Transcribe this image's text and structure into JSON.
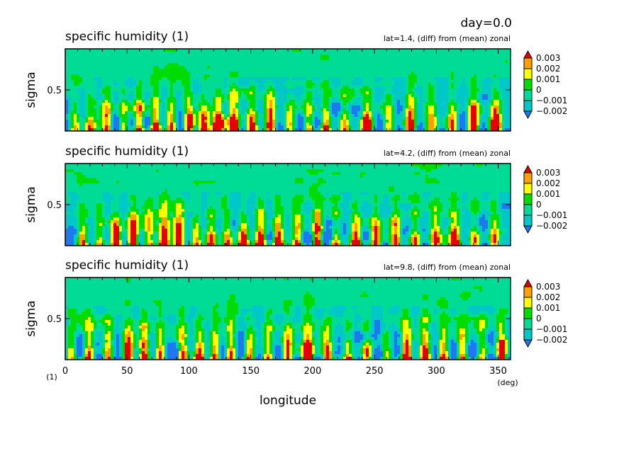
{
  "figure": {
    "day_label": "day=0.0",
    "xlabel": "longitude",
    "ylabel": "sigma",
    "x_unit": "(deg)",
    "y_unit": "(1)"
  },
  "colors": {
    "levels": [
      "#1e78f0",
      "#00c8c8",
      "#00dc96",
      "#00dc00",
      "#ffff00",
      "#ffa000",
      "#e60000"
    ],
    "outline": "#000000"
  },
  "chart_data": [
    {
      "type": "heatmap",
      "title": "specific humidity (1)",
      "subtitle": "lat=1.4, (diff) from (mean) zonal",
      "xlim": [
        0,
        360
      ],
      "x_ticks": [
        0,
        50,
        100,
        150,
        200,
        250,
        300,
        350
      ],
      "y_ticks": [
        0.5
      ],
      "colorbar": {
        "ticks": [
          "0.003",
          "0.002",
          "0.001",
          "0",
          "−0.001",
          "−0.002"
        ]
      },
      "hot_spots": [
        8,
        20,
        34,
        47,
        60,
        73,
        86,
        100,
        112,
        124,
        136,
        151,
        166,
        182,
        197,
        211,
        226,
        244,
        262,
        279,
        296,
        313,
        330,
        348
      ]
    },
    {
      "type": "heatmap",
      "title": "specific humidity (1)",
      "subtitle": "lat=4.2, (diff) from (mean) zonal",
      "xlim": [
        0,
        360
      ],
      "x_ticks": [
        0,
        50,
        100,
        150,
        200,
        250,
        300,
        350
      ],
      "y_ticks": [
        0.5
      ],
      "colorbar": {
        "ticks": [
          "0.003",
          "0.002",
          "0.001",
          "0",
          "−0.001",
          "−0.002"
        ]
      },
      "hot_spots": [
        14,
        28,
        41,
        55,
        68,
        80,
        92,
        106,
        118,
        131,
        144,
        158,
        172,
        188,
        204,
        219,
        235,
        251,
        267,
        283,
        299,
        315,
        331,
        347
      ]
    },
    {
      "type": "heatmap",
      "title": "specific humidity (1)",
      "subtitle": "lat=9.8, (diff) from (mean) zonal",
      "xlim": [
        0,
        360
      ],
      "x_ticks": [
        0,
        50,
        100,
        150,
        200,
        250,
        300,
        350
      ],
      "y_ticks": [
        0.5
      ],
      "colorbar": {
        "ticks": [
          "0.003",
          "0.002",
          "0.001",
          "0",
          "−0.001",
          "−0.002"
        ]
      },
      "hot_spots": [
        5,
        19,
        35,
        51,
        64,
        77,
        95,
        109,
        121,
        134,
        149,
        164,
        180,
        196,
        212,
        229,
        244,
        260,
        276,
        291,
        306,
        321,
        337,
        353
      ]
    }
  ]
}
